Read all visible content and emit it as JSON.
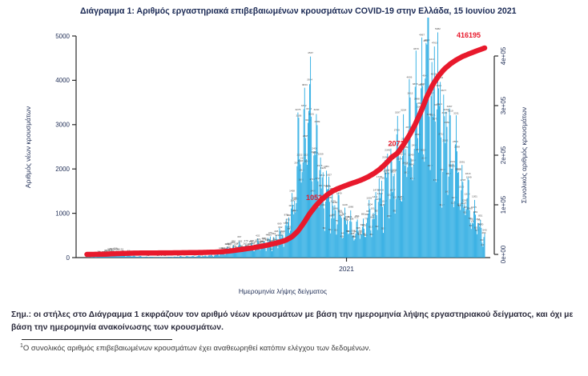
{
  "title": "Διάγραμμα 1: Αριθμός εργαστηριακά επιβεβαιωμένων κρουσμάτων COVID-19 στην Ελλάδα, 15 Ιουνίου 2021",
  "note": "Σημ.: οι στήλες στο Διάγραμμα 1 εκφράζουν τον αριθμό νέων κρουσμάτων με βάση την ημερομηνία λήψης εργαστηριακού δείγματος, και όχι με βάση την ημερομηνία ανακοίνωσης των κρουσμάτων.",
  "footnote": {
    "marker": "1",
    "text": "Ο συνολικός αριθμός επιβεβαιωμένων κρουσμάτων έχει αναθεωρηθεί κατόπιν ελέγχου των δεδομένων."
  },
  "chart_data": {
    "type": "bar",
    "title": "Διάγραμμα 1: Αριθμός εργαστηριακά επιβεβαιωμένων κρουσμάτων COVID-19 στην Ελλάδα, 15 Ιουνίου 2021",
    "xlabel": "Ημερομηνία λήψης δείγματος",
    "ylabel_left": "Αριθμός νέων κρουσμάτων",
    "ylabel_right": "Συνολικός αριθμός κρουσμάτων",
    "x_tick_labels": [
      "2021"
    ],
    "x_tick_dates": [
      "2021-01-01"
    ],
    "y_left_ticks": [
      0,
      1000,
      2000,
      3000,
      4000,
      5000
    ],
    "y_right_ticks": [
      0,
      100000,
      200000,
      300000,
      400000
    ],
    "y_right_tick_labels": [
      "0e+00",
      "1e+05",
      "2e+05",
      "3e+05",
      "4e+05"
    ],
    "ylim_left": [
      0,
      5000
    ],
    "ylim_right": [
      0,
      400000
    ],
    "grid": false,
    "legend": "none",
    "bar_color": "#29abe2",
    "line_color": "#e8192c",
    "axis_text_color": "#25335a",
    "series": [
      {
        "name": "Αριθμός νέων κρουσμάτων (στήλες)",
        "type": "bar",
        "axis": "left"
      },
      {
        "name": "Συνολικός αριθμός κρουσμάτων (γραμμή)",
        "type": "line",
        "axis": "right"
      }
    ],
    "annotations": [
      {
        "date": "2020-11-29",
        "label": "1053",
        "occluded_by_line": true
      },
      {
        "date": "2021-03-07",
        "label": "2072",
        "occluded_by_line": true
      },
      {
        "date": "2021-06-15",
        "label": "416195",
        "occluded_by_line": false
      }
    ],
    "final_total": 416195,
    "sample_columns": [
      "sample_date",
      "new_cases_envelope",
      "cumulative_cases"
    ],
    "samples": [
      [
        "2020-02-26",
        2,
        3
      ],
      [
        "2020-03-04",
        12,
        50
      ],
      [
        "2020-03-11",
        35,
        190
      ],
      [
        "2020-03-18",
        65,
        480
      ],
      [
        "2020-03-25",
        90,
        960
      ],
      [
        "2020-04-01",
        95,
        1520
      ],
      [
        "2020-04-08",
        70,
        1910
      ],
      [
        "2020-04-15",
        48,
        2230
      ],
      [
        "2020-04-22",
        38,
        2500
      ],
      [
        "2020-04-29",
        26,
        2680
      ],
      [
        "2020-05-06",
        20,
        2820
      ],
      [
        "2020-05-13",
        15,
        2900
      ],
      [
        "2020-05-20",
        12,
        2970
      ],
      [
        "2020-05-27",
        10,
        3020
      ],
      [
        "2020-06-03",
        14,
        3080
      ],
      [
        "2020-06-10",
        20,
        3160
      ],
      [
        "2020-06-17",
        26,
        3280
      ],
      [
        "2020-06-24",
        28,
        3410
      ],
      [
        "2020-07-01",
        32,
        3560
      ],
      [
        "2020-07-08",
        36,
        3760
      ],
      [
        "2020-07-15",
        42,
        4010
      ],
      [
        "2020-07-22",
        48,
        4280
      ],
      [
        "2020-07-29",
        65,
        4660
      ],
      [
        "2020-08-05",
        120,
        5230
      ],
      [
        "2020-08-12",
        190,
        6380
      ],
      [
        "2020-08-19",
        240,
        7820
      ],
      [
        "2020-08-26",
        250,
        9450
      ],
      [
        "2020-09-02",
        230,
        11040
      ],
      [
        "2020-09-09",
        260,
        12700
      ],
      [
        "2020-09-16",
        310,
        14640
      ],
      [
        "2020-09-23",
        340,
        16870
      ],
      [
        "2020-09-30",
        360,
        19250
      ],
      [
        "2020-10-07",
        420,
        21950
      ],
      [
        "2020-10-14",
        500,
        25070
      ],
      [
        "2020-10-21",
        680,
        29070
      ],
      [
        "2020-10-28",
        1150,
        35520
      ],
      [
        "2020-11-04",
        2300,
        47000
      ],
      [
        "2020-11-11",
        3200,
        63300
      ],
      [
        "2020-11-18",
        3500,
        82000
      ],
      [
        "2020-11-25",
        2700,
        97300
      ],
      [
        "2020-12-02",
        1900,
        110000
      ],
      [
        "2020-12-09",
        1500,
        120400
      ],
      [
        "2020-12-16",
        1250,
        128200
      ],
      [
        "2020-12-23",
        1050,
        133600
      ],
      [
        "2020-12-30",
        900,
        138000
      ],
      [
        "2021-01-06",
        800,
        142500
      ],
      [
        "2021-01-13",
        620,
        146500
      ],
      [
        "2021-01-20",
        720,
        151000
      ],
      [
        "2021-01-27",
        920,
        156500
      ],
      [
        "2021-02-03",
        1150,
        163500
      ],
      [
        "2021-02-10",
        1450,
        172000
      ],
      [
        "2021-02-17",
        1850,
        183000
      ],
      [
        "2021-02-24",
        2050,
        196000
      ],
      [
        "2021-03-03",
        2250,
        204000
      ],
      [
        "2021-03-10",
        2650,
        221000
      ],
      [
        "2021-03-17",
        2950,
        240000
      ],
      [
        "2021-03-24",
        3350,
        262000
      ],
      [
        "2021-03-31",
        4100,
        288000
      ],
      [
        "2021-04-07",
        4800,
        318000
      ],
      [
        "2021-04-14",
        4350,
        342000
      ],
      [
        "2021-04-21",
        3650,
        360000
      ],
      [
        "2021-04-28",
        3050,
        374000
      ],
      [
        "2021-05-05",
        2650,
        384000
      ],
      [
        "2021-05-12",
        2250,
        392000
      ],
      [
        "2021-05-19",
        1750,
        398500
      ],
      [
        "2021-05-26",
        1350,
        403500
      ],
      [
        "2021-06-02",
        1050,
        408000
      ],
      [
        "2021-06-09",
        750,
        412500
      ],
      [
        "2021-06-15",
        520,
        416195
      ]
    ]
  }
}
